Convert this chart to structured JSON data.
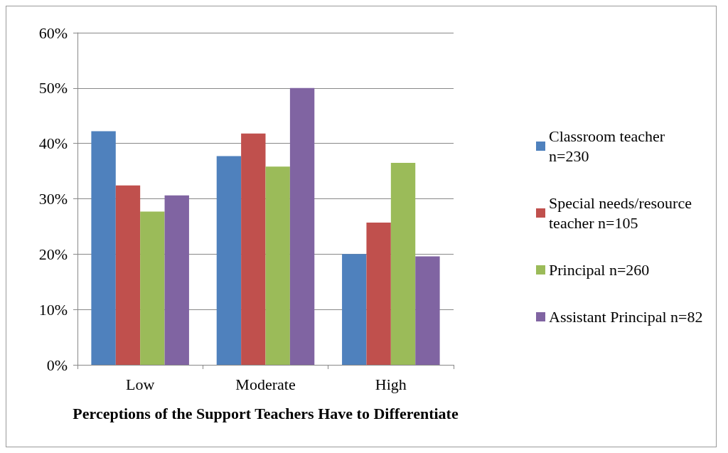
{
  "chart_data": {
    "type": "bar",
    "xlabel": "Perceptions of the Support Teachers Have to Differentiate",
    "categories": [
      "Low",
      "Moderate",
      "High"
    ],
    "series": [
      {
        "name": "Classroom teacher n=230",
        "color": "#4f81bd",
        "values": [
          42.2,
          37.7,
          20.0
        ]
      },
      {
        "name": "Special needs/resource teacher n=105",
        "color": "#c0504d",
        "values": [
          32.4,
          41.8,
          25.7
        ]
      },
      {
        "name": "Principal n=260",
        "color": "#9bbb59",
        "values": [
          27.7,
          35.8,
          36.5
        ]
      },
      {
        "name": "Assistant Principal n=82",
        "color": "#8064a2",
        "values": [
          30.6,
          50.0,
          19.6
        ]
      }
    ],
    "ylim": [
      0,
      60
    ],
    "yticks": [
      {
        "value": 0,
        "label": "0%"
      },
      {
        "value": 10,
        "label": "10%"
      },
      {
        "value": 20,
        "label": "20%"
      },
      {
        "value": 30,
        "label": "30%"
      },
      {
        "value": 40,
        "label": "40%"
      },
      {
        "value": 50,
        "label": "50%"
      },
      {
        "value": 60,
        "label": "60%"
      }
    ],
    "grid": "y",
    "legend": "right"
  }
}
